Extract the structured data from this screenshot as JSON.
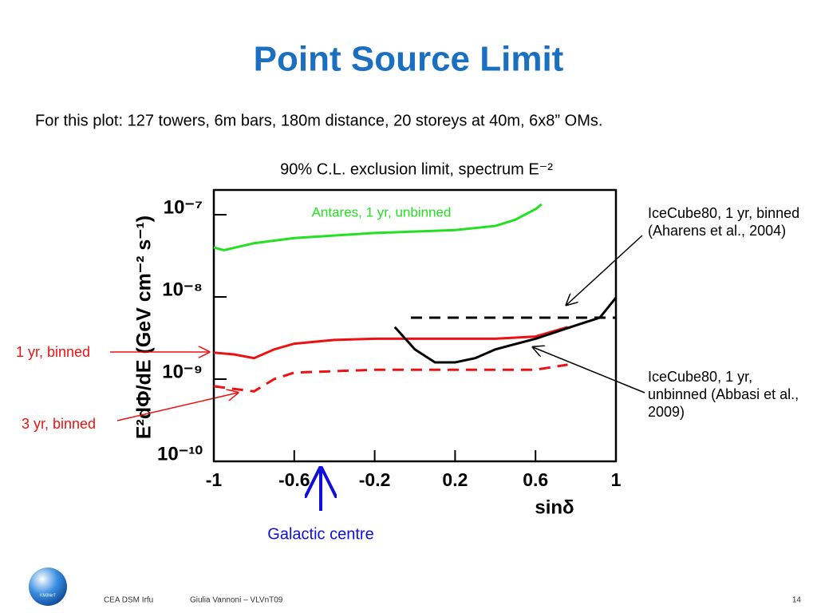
{
  "slide_title": "Point Source Limit",
  "subtitle": "For this plot: 127 towers, 6m bars, 180m distance, 20 storeys at 40m, 6x8” OMs.",
  "footer": {
    "left": "CEA DSM Irfu",
    "author": "Giulia Vannoni – VLVnT09",
    "page": "14",
    "logo": "KM3NeT"
  },
  "chart_data": {
    "type": "line",
    "title": "90% C.L. exclusion limit, spectrum E⁻²",
    "y_label": "E²dΦ/dE (GeV cm⁻² s⁻¹)",
    "x_label": "sinδ",
    "log_y": true,
    "xlim": [
      -1,
      1
    ],
    "xticks": [
      -1,
      -0.6,
      -0.2,
      0.2,
      0.6,
      1
    ],
    "ylim": [
      1e-10,
      2e-07
    ],
    "yticks": [
      {
        "value": 1e-07,
        "label": "10⁻⁷"
      },
      {
        "value": 1e-08,
        "label": "10⁻⁸"
      },
      {
        "value": 1e-09,
        "label": "10⁻⁹"
      },
      {
        "value": 1e-10,
        "label": "10⁻¹⁰"
      }
    ],
    "series": [
      {
        "name": "Antares, 1 yr, unbinned",
        "color": "#22e022",
        "dash": false,
        "x": [
          -1,
          -0.95,
          -0.8,
          -0.6,
          -0.2,
          0.2,
          0.4,
          0.5,
          0.6,
          0.63
        ],
        "values": [
          4e-08,
          3.7e-08,
          4.5e-08,
          5.2e-08,
          6e-08,
          6.5e-08,
          7.3e-08,
          8.7e-08,
          1.17e-07,
          1.34e-07
        ]
      },
      {
        "name": "1 yr, binned",
        "color": "#ee1111",
        "dash": false,
        "x": [
          -1,
          -0.9,
          -0.8,
          -0.7,
          -0.6,
          -0.4,
          -0.2,
          0,
          0.2,
          0.4,
          0.6,
          0.76
        ],
        "values": [
          2.1e-09,
          2e-09,
          1.8e-09,
          2.3e-09,
          2.7e-09,
          3e-09,
          3.1e-09,
          3.1e-09,
          3.1e-09,
          3.1e-09,
          3.3e-09,
          4.3e-09
        ]
      },
      {
        "name": "3 yr, binned",
        "color": "#ee1111",
        "dash": true,
        "x": [
          -1,
          -0.9,
          -0.8,
          -0.7,
          -0.6,
          -0.2,
          0.2,
          0.6,
          0.76
        ],
        "values": [
          8.2e-10,
          7.6e-10,
          7.1e-10,
          1e-09,
          1.2e-09,
          1.3e-09,
          1.3e-09,
          1.3e-09,
          1.5e-09
        ]
      },
      {
        "name": "IceCube80, 1 yr, binned (Aharens et al., 2004)",
        "color": "#000000",
        "dash": true,
        "x": [
          -0.02,
          1
        ],
        "values": [
          5.6e-09,
          5.6e-09
        ]
      },
      {
        "name": "IceCube80, 1 yr, unbinned (Abbasi et al., 2009)",
        "color": "#000000",
        "dash": false,
        "x": [
          -0.1,
          0,
          0.1,
          0.2,
          0.3,
          0.4,
          0.6,
          0.8,
          0.92,
          1
        ],
        "values": [
          4.3e-09,
          2.3e-09,
          1.6e-09,
          1.6e-09,
          1.8e-09,
          2.3e-09,
          3.1e-09,
          4.5e-09,
          5.6e-09,
          9.8e-09
        ]
      }
    ],
    "annotations": [
      "Galactic centre"
    ]
  }
}
